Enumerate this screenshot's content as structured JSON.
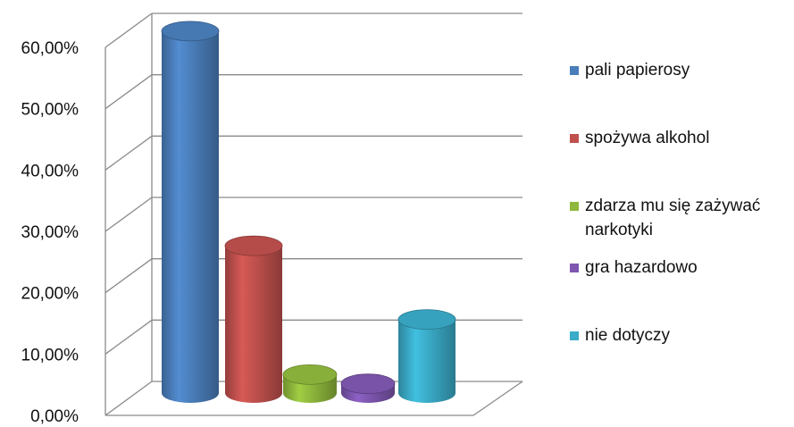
{
  "chart_data": {
    "type": "bar",
    "style": "3d-cylinder",
    "categories": [
      "pali papierosy",
      "spożywa alkohol",
      "zdarza mu się zażywać narkotyki",
      "gra hazardowo",
      "nie dotyczy"
    ],
    "values": [
      59.0,
      24.0,
      3.0,
      1.5,
      12.0
    ],
    "colors": [
      "#4a7ebb",
      "#c0504d",
      "#8fb83c",
      "#7e57b0",
      "#3aabc8"
    ],
    "ylim": [
      0,
      60
    ],
    "yticks": [
      "0,00%",
      "10,00%",
      "20,00%",
      "30,00%",
      "40,00%",
      "50,00%",
      "60,00%"
    ],
    "grid": true,
    "legend_position": "right"
  }
}
